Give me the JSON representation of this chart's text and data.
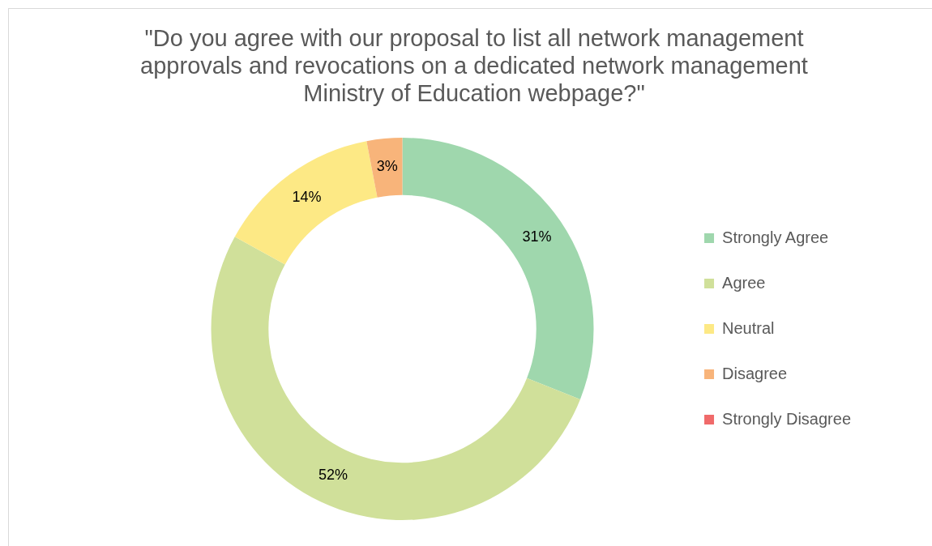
{
  "chart_data": {
    "type": "donut",
    "title": "\"Do you agree with our proposal to list all network management approvals and revocations on a dedicated network management Ministry of Education webpage?\"",
    "categories": [
      "Strongly Agree",
      "Agree",
      "Neutral",
      "Disagree",
      "Strongly Disagree"
    ],
    "values": [
      31,
      52,
      14,
      3,
      0
    ],
    "colors": [
      "#9fd7ad",
      "#d0e09a",
      "#fde985",
      "#f8b47a",
      "#f06a6a"
    ],
    "value_labels": [
      "31%",
      "52%",
      "14%",
      "3%",
      null
    ],
    "legend": "right"
  }
}
